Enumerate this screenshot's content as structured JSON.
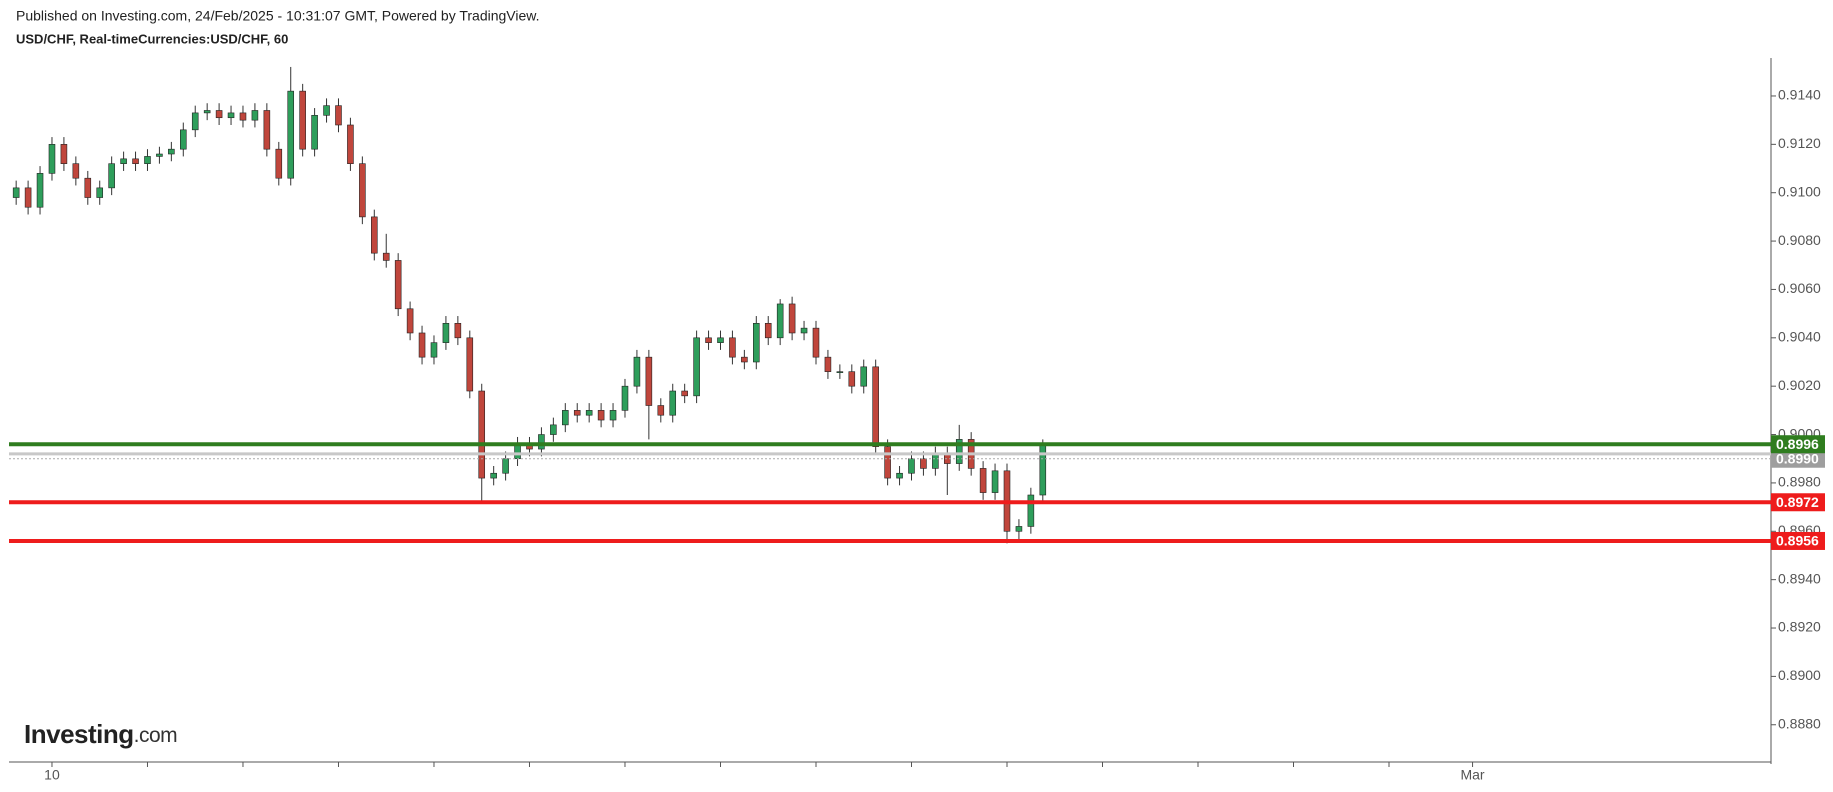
{
  "chart_data": {
    "type": "candlestick",
    "title": "Published on Investing.com, 24/Feb/2025 - 10:31:07 GMT, Powered by TradingView.",
    "subtitle": "USD/CHF, Real-timeCurrencies:USD/CHF, 60",
    "logo": {
      "name": "Investing",
      "domain": ".com"
    },
    "up_color": "#2e9e5b",
    "down_color": "#c0463c",
    "wick_color": "#333333",
    "open": [
      0.9098,
      0.9102,
      0.9094,
      0.9108,
      0.912,
      0.9112,
      0.9106,
      0.9098,
      0.9102,
      0.9112,
      0.9114,
      0.9112,
      0.9115,
      0.9116,
      0.9118,
      0.9126,
      0.9133,
      0.9134,
      0.9131,
      0.9133,
      0.913,
      0.9134,
      0.9118,
      0.9106,
      0.9142,
      0.9118,
      0.9132,
      0.9136,
      0.9128,
      0.9112,
      0.909,
      0.9075,
      0.9072,
      0.9052,
      0.9042,
      0.9032,
      0.9038,
      0.9046,
      0.904,
      0.9018,
      0.8982,
      0.8984,
      0.899,
      0.8996,
      0.8994,
      0.9,
      0.9004,
      0.901,
      0.9008,
      0.901,
      0.9006,
      0.901,
      0.902,
      0.9032,
      0.9012,
      0.9008,
      0.9018,
      0.9016,
      0.904,
      0.9038,
      0.904,
      0.9032,
      0.903,
      0.9046,
      0.904,
      0.9054,
      0.9042,
      0.9044,
      0.9032,
      0.9026,
      0.9026,
      0.902,
      0.9028,
      0.8995,
      0.8982,
      0.8984,
      0.899,
      0.8986,
      0.8992,
      0.8988,
      0.8998,
      0.8986,
      0.8976,
      0.8985,
      0.896,
      0.8962,
      0.8975
    ],
    "high": [
      0.9105,
      0.9105,
      0.9111,
      0.9123,
      0.9123,
      0.9115,
      0.9109,
      0.9105,
      0.9115,
      0.9117,
      0.9117,
      0.9118,
      0.9119,
      0.9121,
      0.9129,
      0.9136,
      0.9137,
      0.9137,
      0.9136,
      0.9136,
      0.9137,
      0.9137,
      0.9121,
      0.9152,
      0.9145,
      0.9135,
      0.9139,
      0.9139,
      0.9131,
      0.9115,
      0.9093,
      0.9083,
      0.9075,
      0.9055,
      0.9045,
      0.9041,
      0.9049,
      0.9049,
      0.9043,
      0.9021,
      0.8987,
      0.8993,
      0.8999,
      0.8999,
      0.9003,
      0.9007,
      0.9013,
      0.9013,
      0.9013,
      0.9013,
      0.9013,
      0.9023,
      0.9035,
      0.9035,
      0.9015,
      0.9021,
      0.9021,
      0.9043,
      0.9043,
      0.9043,
      0.9043,
      0.9035,
      0.9049,
      0.9049,
      0.9056,
      0.9057,
      0.9047,
      0.9047,
      0.9035,
      0.9029,
      0.9029,
      0.9031,
      0.9031,
      0.8998,
      0.8987,
      0.8993,
      0.8993,
      0.8995,
      0.8995,
      0.9004,
      0.9001,
      0.8989,
      0.8988,
      0.8988,
      0.8965,
      0.8978,
      0.8998
    ],
    "low": [
      0.9095,
      0.9091,
      0.9091,
      0.9105,
      0.9109,
      0.9103,
      0.9095,
      0.9095,
      0.9099,
      0.9109,
      0.9109,
      0.9109,
      0.9112,
      0.9113,
      0.9115,
      0.9123,
      0.913,
      0.9128,
      0.9128,
      0.9127,
      0.9127,
      0.9115,
      0.9103,
      0.9103,
      0.9115,
      0.9115,
      0.9129,
      0.9125,
      0.9109,
      0.9087,
      0.9072,
      0.9069,
      0.9049,
      0.9039,
      0.9029,
      0.9029,
      0.9035,
      0.9037,
      0.9015,
      0.8972,
      0.8979,
      0.8981,
      0.8987,
      0.8991,
      0.8991,
      0.8997,
      0.9001,
      0.9005,
      0.9005,
      0.9003,
      0.9003,
      0.9007,
      0.9017,
      0.8998,
      0.9005,
      0.9005,
      0.9013,
      0.9013,
      0.9035,
      0.9035,
      0.9029,
      0.9027,
      0.9027,
      0.9037,
      0.9037,
      0.9039,
      0.9039,
      0.9029,
      0.9023,
      0.9023,
      0.9017,
      0.9017,
      0.8992,
      0.8979,
      0.8979,
      0.8981,
      0.8983,
      0.8983,
      0.8975,
      0.8985,
      0.8983,
      0.8973,
      0.8973,
      0.8955,
      0.8956,
      0.8959,
      0.8972
    ],
    "close": [
      0.9102,
      0.9094,
      0.9108,
      0.912,
      0.9112,
      0.9106,
      0.9098,
      0.9102,
      0.9112,
      0.9114,
      0.9112,
      0.9115,
      0.9116,
      0.9118,
      0.9126,
      0.9133,
      0.9134,
      0.9131,
      0.9133,
      0.913,
      0.9134,
      0.9118,
      0.9106,
      0.9142,
      0.9118,
      0.9132,
      0.9136,
      0.9128,
      0.9112,
      0.909,
      0.9075,
      0.9072,
      0.9052,
      0.9042,
      0.9032,
      0.9038,
      0.9046,
      0.904,
      0.9018,
      0.8982,
      0.8984,
      0.899,
      0.8996,
      0.8994,
      0.9,
      0.9004,
      0.901,
      0.9008,
      0.901,
      0.9006,
      0.901,
      0.902,
      0.9032,
      0.9012,
      0.9008,
      0.9018,
      0.9016,
      0.904,
      0.9038,
      0.904,
      0.9032,
      0.903,
      0.9046,
      0.904,
      0.9054,
      0.9042,
      0.9044,
      0.9032,
      0.9026,
      0.9026,
      0.902,
      0.9028,
      0.8995,
      0.8982,
      0.8984,
      0.899,
      0.8986,
      0.8992,
      0.8988,
      0.8998,
      0.8986,
      0.8976,
      0.8985,
      0.896,
      0.8962,
      0.8975,
      0.8996
    ],
    "xlim": [
      -0.6,
      147
    ],
    "xticks": [
      {
        "value": 3,
        "label": "10"
      },
      {
        "value": 122,
        "label": "Mar"
      }
    ],
    "xtick_marks": [
      3,
      11,
      19,
      27,
      35,
      43,
      51,
      59,
      67,
      75,
      83,
      91,
      99,
      107,
      115,
      122
    ],
    "ylim": [
      0.88646,
      0.91557
    ],
    "yticks": [
      {
        "value": 0.888,
        "label": "0.8880"
      },
      {
        "value": 0.89,
        "label": "0.8900"
      },
      {
        "value": 0.892,
        "label": "0.8920"
      },
      {
        "value": 0.894,
        "label": "0.8940"
      },
      {
        "value": 0.896,
        "label": "0.8960"
      },
      {
        "value": 0.898,
        "label": "0.8980"
      },
      {
        "value": 0.9,
        "label": "0.9000"
      },
      {
        "value": 0.902,
        "label": "0.9020"
      },
      {
        "value": 0.904,
        "label": "0.9040"
      },
      {
        "value": 0.906,
        "label": "0.9060"
      },
      {
        "value": 0.908,
        "label": "0.9080"
      },
      {
        "value": 0.91,
        "label": "0.9100"
      },
      {
        "value": 0.912,
        "label": "0.9120"
      },
      {
        "value": 0.914,
        "label": "0.9140"
      }
    ],
    "levels": [
      {
        "value": 0.8992,
        "label": "0.8992",
        "color": "#c8c8c8",
        "label_color": "#3f6fd6",
        "width": 3
      },
      {
        "value": 0.899,
        "label": "0.8990",
        "color": "#aaaaaa",
        "label_color": "#9e9e9e",
        "width": 1
      },
      {
        "value": 0.8996,
        "label": "0.8996",
        "color": "#2f7d1f",
        "label_color": "#2f7d1f",
        "width": 4
      },
      {
        "value": 0.8972,
        "label": "0.8972",
        "color": "#ee1c1c",
        "label_color": "#ee1c1c",
        "width": 4
      },
      {
        "value": 0.8956,
        "label": "0.8956",
        "color": "#ee1c1c",
        "label_color": "#ee1c1c",
        "width": 4
      }
    ]
  }
}
